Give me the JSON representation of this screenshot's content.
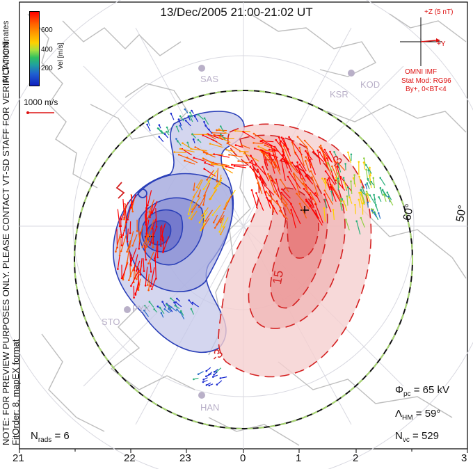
{
  "title": "13/Dec/2005 21:00-21:02 UT",
  "side_note_line1": "NOTE: FOR PREVIEW PURPOSES ONLY. PLEASE CONTACT VT-SD STAFF FOR VERIFICATION.",
  "side_note_line2": "FitOrder: 8, mapEX format",
  "colorbar": {
    "title": "MLT coordinates",
    "label": "Vel [m/s]",
    "ticks": [
      "600",
      "400",
      "200"
    ]
  },
  "reference_vector": "1000 m/s",
  "imf": {
    "z_label": "+Z (5 nT)",
    "y_label": "+Y",
    "source": "OMNI IMF",
    "model": "Stat Mod: RG96",
    "condition": "By+, 0<BT<4"
  },
  "lat_labels": [
    "60°",
    "50°"
  ],
  "contour_labels": [
    "-3",
    "15",
    "-3"
  ],
  "stations": [
    "SAS",
    "KSR",
    "KOD",
    "STO",
    "PYK",
    "HAN"
  ],
  "mlt_labels": [
    "21",
    "22",
    "23",
    "0",
    "1",
    "2",
    "3"
  ],
  "stats": {
    "phi_pc": {
      "sym": "Φ",
      "sub": "pc",
      "value": "= 65 kV"
    },
    "lambda_hm": {
      "sym": "Λ",
      "sub": "HM",
      "value": "= 59°"
    },
    "n_vc": {
      "sym": "N",
      "sub": "vc",
      "value": "= 529"
    },
    "n_rads": {
      "sym": "N",
      "sub": "rads",
      "value": "= 6"
    }
  },
  "colors": {
    "negative_cell": "#2a3fb8",
    "positive_cell": "#d42020",
    "heppner_boundary_outer": "#111111",
    "heppner_boundary_inner": "#a8d870",
    "coastline": "#c0c0c0"
  }
}
